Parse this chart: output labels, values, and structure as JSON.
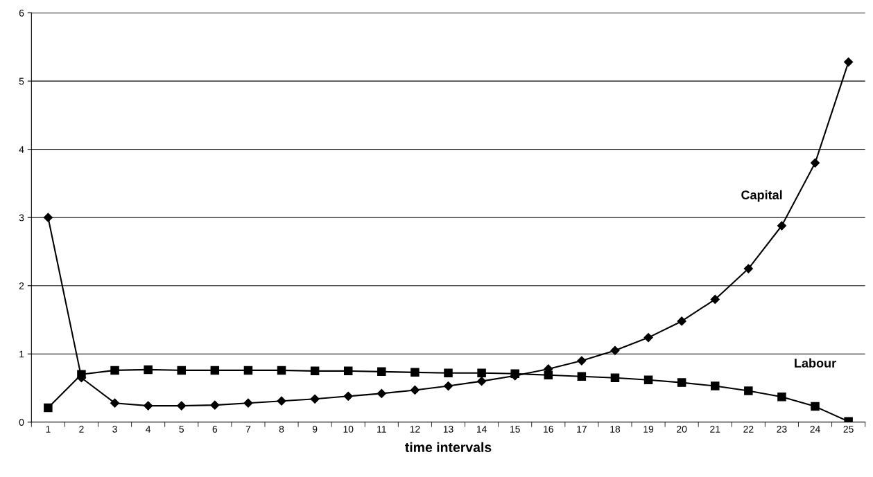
{
  "chart_data": {
    "type": "line",
    "xlabel": "time intervals",
    "categories": [
      "1",
      "2",
      "3",
      "4",
      "5",
      "6",
      "7",
      "8",
      "9",
      "10",
      "11",
      "12",
      "13",
      "14",
      "15",
      "16",
      "17",
      "18",
      "19",
      "20",
      "21",
      "22",
      "23",
      "24",
      "25"
    ],
    "series": [
      {
        "name": "Capital",
        "color": "#000000",
        "marker": "diamond",
        "values": [
          3.0,
          0.65,
          0.28,
          0.24,
          0.24,
          0.25,
          0.28,
          0.31,
          0.34,
          0.38,
          0.42,
          0.47,
          0.53,
          0.6,
          0.68,
          0.78,
          0.9,
          1.05,
          1.24,
          1.48,
          1.8,
          2.25,
          2.88,
          3.8,
          5.28
        ]
      },
      {
        "name": "Labour",
        "color": "#000000",
        "marker": "square",
        "values": [
          0.21,
          0.7,
          0.76,
          0.77,
          0.76,
          0.76,
          0.76,
          0.76,
          0.75,
          0.75,
          0.74,
          0.73,
          0.72,
          0.72,
          0.71,
          0.69,
          0.67,
          0.65,
          0.62,
          0.58,
          0.53,
          0.46,
          0.37,
          0.23,
          0.01
        ]
      }
    ],
    "ylim": [
      0,
      6
    ],
    "yticks": [
      0,
      1,
      2,
      3,
      4,
      5,
      6
    ],
    "grid": "y",
    "legend": false,
    "line_style": "solid"
  }
}
